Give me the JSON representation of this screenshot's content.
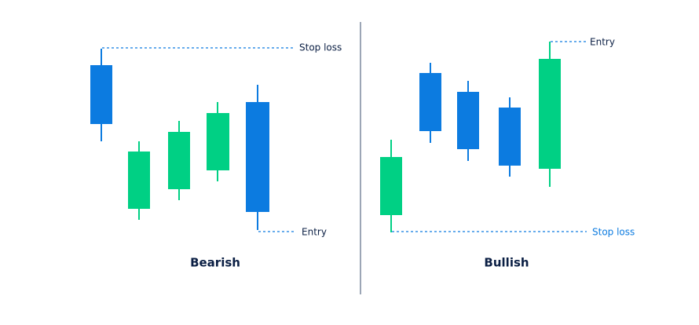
{
  "panels": [
    {
      "title": "Bearish",
      "annotations": {
        "top": "Stop loss",
        "bottom": "Entry"
      }
    },
    {
      "title": "Bullish",
      "annotations": {
        "top": "Entry",
        "bottom": "Stop loss"
      }
    }
  ]
}
